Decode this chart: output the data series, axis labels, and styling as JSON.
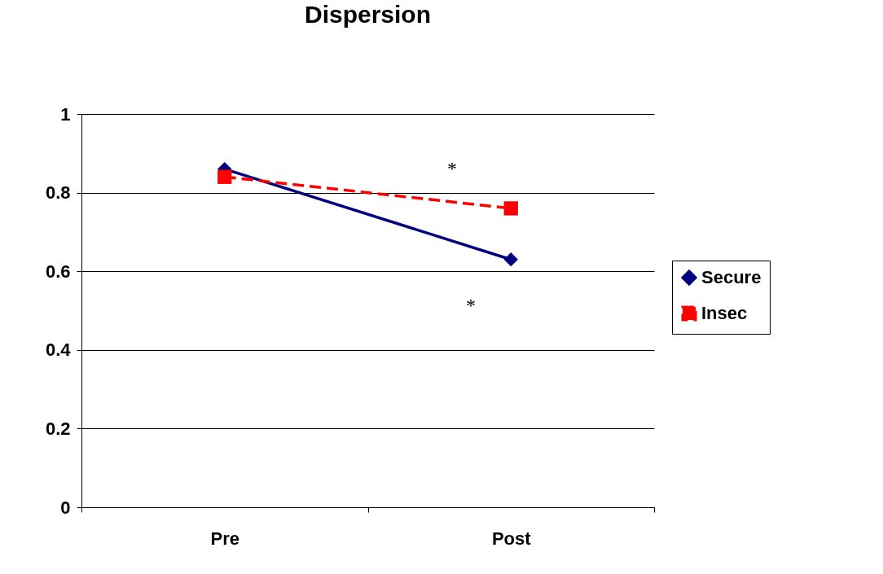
{
  "chart_data": {
    "type": "line",
    "title": "Dispersion",
    "categories": [
      "Pre",
      "Post"
    ],
    "series": [
      {
        "name": "Secure",
        "color": "#000080",
        "values": [
          0.86,
          0.63
        ],
        "marker": "diamond",
        "line_style": "solid"
      },
      {
        "name": "Insec",
        "color": "#ff0000",
        "values": [
          0.84,
          0.76
        ],
        "marker": "square",
        "line_style": "dashed"
      }
    ],
    "ylim": [
      0,
      1
    ],
    "yticks": [
      0,
      0.2,
      0.4,
      0.6,
      0.8,
      1
    ],
    "grid": "y",
    "legend": "right",
    "annotations": [
      "*",
      "*"
    ]
  }
}
